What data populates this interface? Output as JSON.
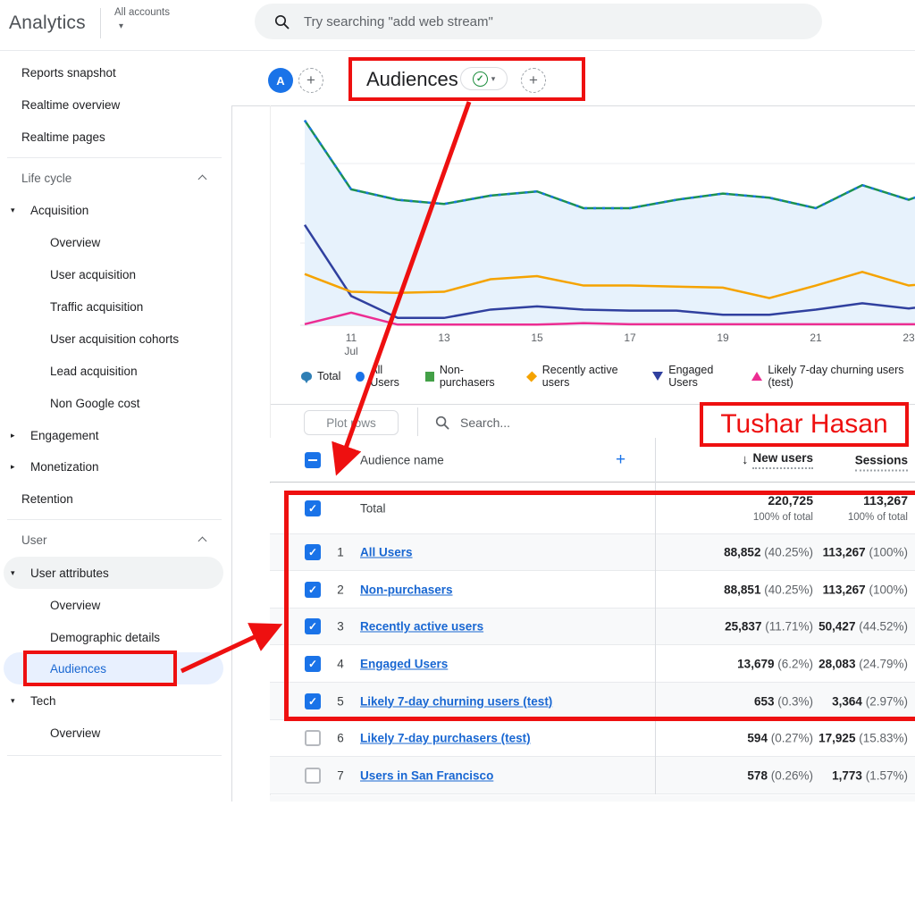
{
  "colors": {
    "annotation_red": "#ee1010",
    "control_blue": "#1a73e8",
    "link_blue": "#1967d2",
    "selected_pill": "#e8f0fe",
    "area_fill": "#e7f2fc"
  },
  "topbar": {
    "brand": "Analytics",
    "account_label": "All accounts",
    "search_placeholder": "Try searching \"add web stream\""
  },
  "report_header": {
    "avatar_letter": "A",
    "add_icon": "+",
    "title": "Audiences",
    "verified_check": "✓",
    "caret": "▾"
  },
  "icons": {
    "tri_down": "▾",
    "tri_right": "▸",
    "caret_down": "▾",
    "sort_desc": "↓",
    "check": "✓",
    "plus": "+"
  },
  "sidebar": {
    "items": [
      {
        "label": "Reports snapshot"
      },
      {
        "label": "Realtime overview"
      },
      {
        "label": "Realtime pages"
      },
      {
        "label": "Life cycle"
      },
      {
        "label": "Acquisition"
      },
      {
        "label": "Overview"
      },
      {
        "label": "User acquisition"
      },
      {
        "label": "Traffic acquisition"
      },
      {
        "label": "User acquisition cohorts"
      },
      {
        "label": "Lead acquisition"
      },
      {
        "label": "Non Google cost"
      },
      {
        "label": "Engagement"
      },
      {
        "label": "Monetization"
      },
      {
        "label": "Retention"
      },
      {
        "label": "User"
      },
      {
        "label": "User attributes"
      },
      {
        "label": "Overview"
      },
      {
        "label": "Demographic details"
      },
      {
        "label": "Audiences"
      },
      {
        "label": "Tech"
      },
      {
        "label": "Overview"
      }
    ]
  },
  "chart_data": {
    "type": "line",
    "title": "",
    "xlabel": "",
    "ylabel": "",
    "y_axis_visible": false,
    "note": "y-axis labels are cropped off-screen; series values are relative heights 0-100 of plot area",
    "x": [
      "Jul 10",
      "Jul 11",
      "Jul 12",
      "Jul 13",
      "Jul 14",
      "Jul 15",
      "Jul 16",
      "Jul 17",
      "Jul 18",
      "Jul 19",
      "Jul 20",
      "Jul 21",
      "Jul 22",
      "Jul 23",
      "Jul 24"
    ],
    "x_tick_labels": [
      {
        "index": 1,
        "label": "11",
        "sub": "Jul"
      },
      {
        "index": 3,
        "label": "13"
      },
      {
        "index": 5,
        "label": "15"
      },
      {
        "index": 7,
        "label": "17"
      },
      {
        "index": 9,
        "label": "19"
      },
      {
        "index": 11,
        "label": "21"
      },
      {
        "index": 13,
        "label": "23"
      }
    ],
    "series": [
      {
        "name": "Non-purchasers",
        "color": "#1b9150",
        "dash": null,
        "fill": "#e7f2fc",
        "values": [
          98,
          65,
          60,
          58,
          62,
          64,
          56,
          56,
          60,
          63,
          61,
          56,
          67,
          60,
          68
        ]
      },
      {
        "name": "All Users",
        "color": "#1a73e8",
        "dash": "3 7",
        "fill": null,
        "values": [
          98,
          65,
          60,
          58,
          62,
          64,
          56,
          56,
          60,
          63,
          61,
          56,
          67,
          60,
          68
        ]
      },
      {
        "name": "Engaged Users",
        "color": "#30409f",
        "dash": null,
        "fill": null,
        "values": [
          48,
          14,
          3.5,
          3.5,
          7.5,
          9,
          7.5,
          7,
          7,
          5,
          5,
          7.5,
          10.5,
          8,
          11
        ]
      },
      {
        "name": "Recently active users",
        "color": "#f5a300",
        "dash": null,
        "fill": null,
        "values": [
          24.5,
          16,
          15.5,
          16,
          22,
          23.5,
          19,
          19,
          18.5,
          18,
          13,
          19,
          25.5,
          19,
          21
        ]
      },
      {
        "name": "Likely 7-day churning users (test)",
        "color": "#ec2d92",
        "dash": null,
        "fill": null,
        "values": [
          0.5,
          6,
          0.3,
          0.3,
          0.3,
          0.3,
          1,
          0.5,
          0.5,
          0.5,
          0.5,
          0.5,
          0.5,
          0.5,
          0.5
        ]
      }
    ],
    "legend_position": "bottom"
  },
  "legend": {
    "items": [
      {
        "label": "Total",
        "icon": "pin",
        "color": "#2f7fb5"
      },
      {
        "label": "All Users",
        "icon": "circle",
        "color": "#1a73e8"
      },
      {
        "label": "Non-purchasers",
        "icon": "square",
        "color": "#43a047"
      },
      {
        "label": "Recently active users",
        "icon": "diamond",
        "color": "#f5a300"
      },
      {
        "label": "Engaged Users",
        "icon": "triangle-down",
        "color": "#30409f"
      },
      {
        "label": "Likely 7-day churning users (test)",
        "icon": "triangle-up",
        "color": "#ec2d92"
      }
    ]
  },
  "table": {
    "toolbar": {
      "plot_rows_label": "Plot rows",
      "search_placeholder": "Search..."
    },
    "header": {
      "select_all_state": "indeterminate",
      "name": "Audience name",
      "add_icon": "+",
      "sort_icon": "↓",
      "new_users": "New users",
      "sessions": "Sessions"
    },
    "totals": {
      "checked": true,
      "label": "Total",
      "new_users": "220,725",
      "new_users_sub": "100% of total",
      "sessions": "113,267",
      "sessions_sub": "100% of total"
    },
    "rows": [
      {
        "index": "1",
        "name": "All Users",
        "checked": true,
        "new_users": "88,852",
        "new_users_pct": "(40.25%)",
        "sessions": "113,267",
        "sessions_pct": "(100%)"
      },
      {
        "index": "2",
        "name": "Non-purchasers",
        "checked": true,
        "new_users": "88,851",
        "new_users_pct": "(40.25%)",
        "sessions": "113,267",
        "sessions_pct": "(100%)"
      },
      {
        "index": "3",
        "name": "Recently active users",
        "checked": true,
        "new_users": "25,837",
        "new_users_pct": "(11.71%)",
        "sessions": "50,427",
        "sessions_pct": "(44.52%)"
      },
      {
        "index": "4",
        "name": "Engaged Users",
        "checked": true,
        "new_users": "13,679",
        "new_users_pct": "(6.2%)",
        "sessions": "28,083",
        "sessions_pct": "(24.79%)"
      },
      {
        "index": "5",
        "name": "Likely 7-day churning users (test)",
        "checked": true,
        "new_users": "653",
        "new_users_pct": "(0.3%)",
        "sessions": "3,364",
        "sessions_pct": "(2.97%)"
      },
      {
        "index": "6",
        "name": "Likely 7-day purchasers (test)",
        "checked": false,
        "new_users": "594",
        "new_users_pct": "(0.27%)",
        "sessions": "17,925",
        "sessions_pct": "(15.83%)"
      },
      {
        "index": "7",
        "name": "Users in San Francisco",
        "checked": false,
        "new_users": "578",
        "new_users_pct": "(0.26%)",
        "sessions": "1,773",
        "sessions_pct": "(1.57%)"
      }
    ]
  },
  "annotations": {
    "color": "#ee1010",
    "watermark": "Tushar Hasan"
  }
}
